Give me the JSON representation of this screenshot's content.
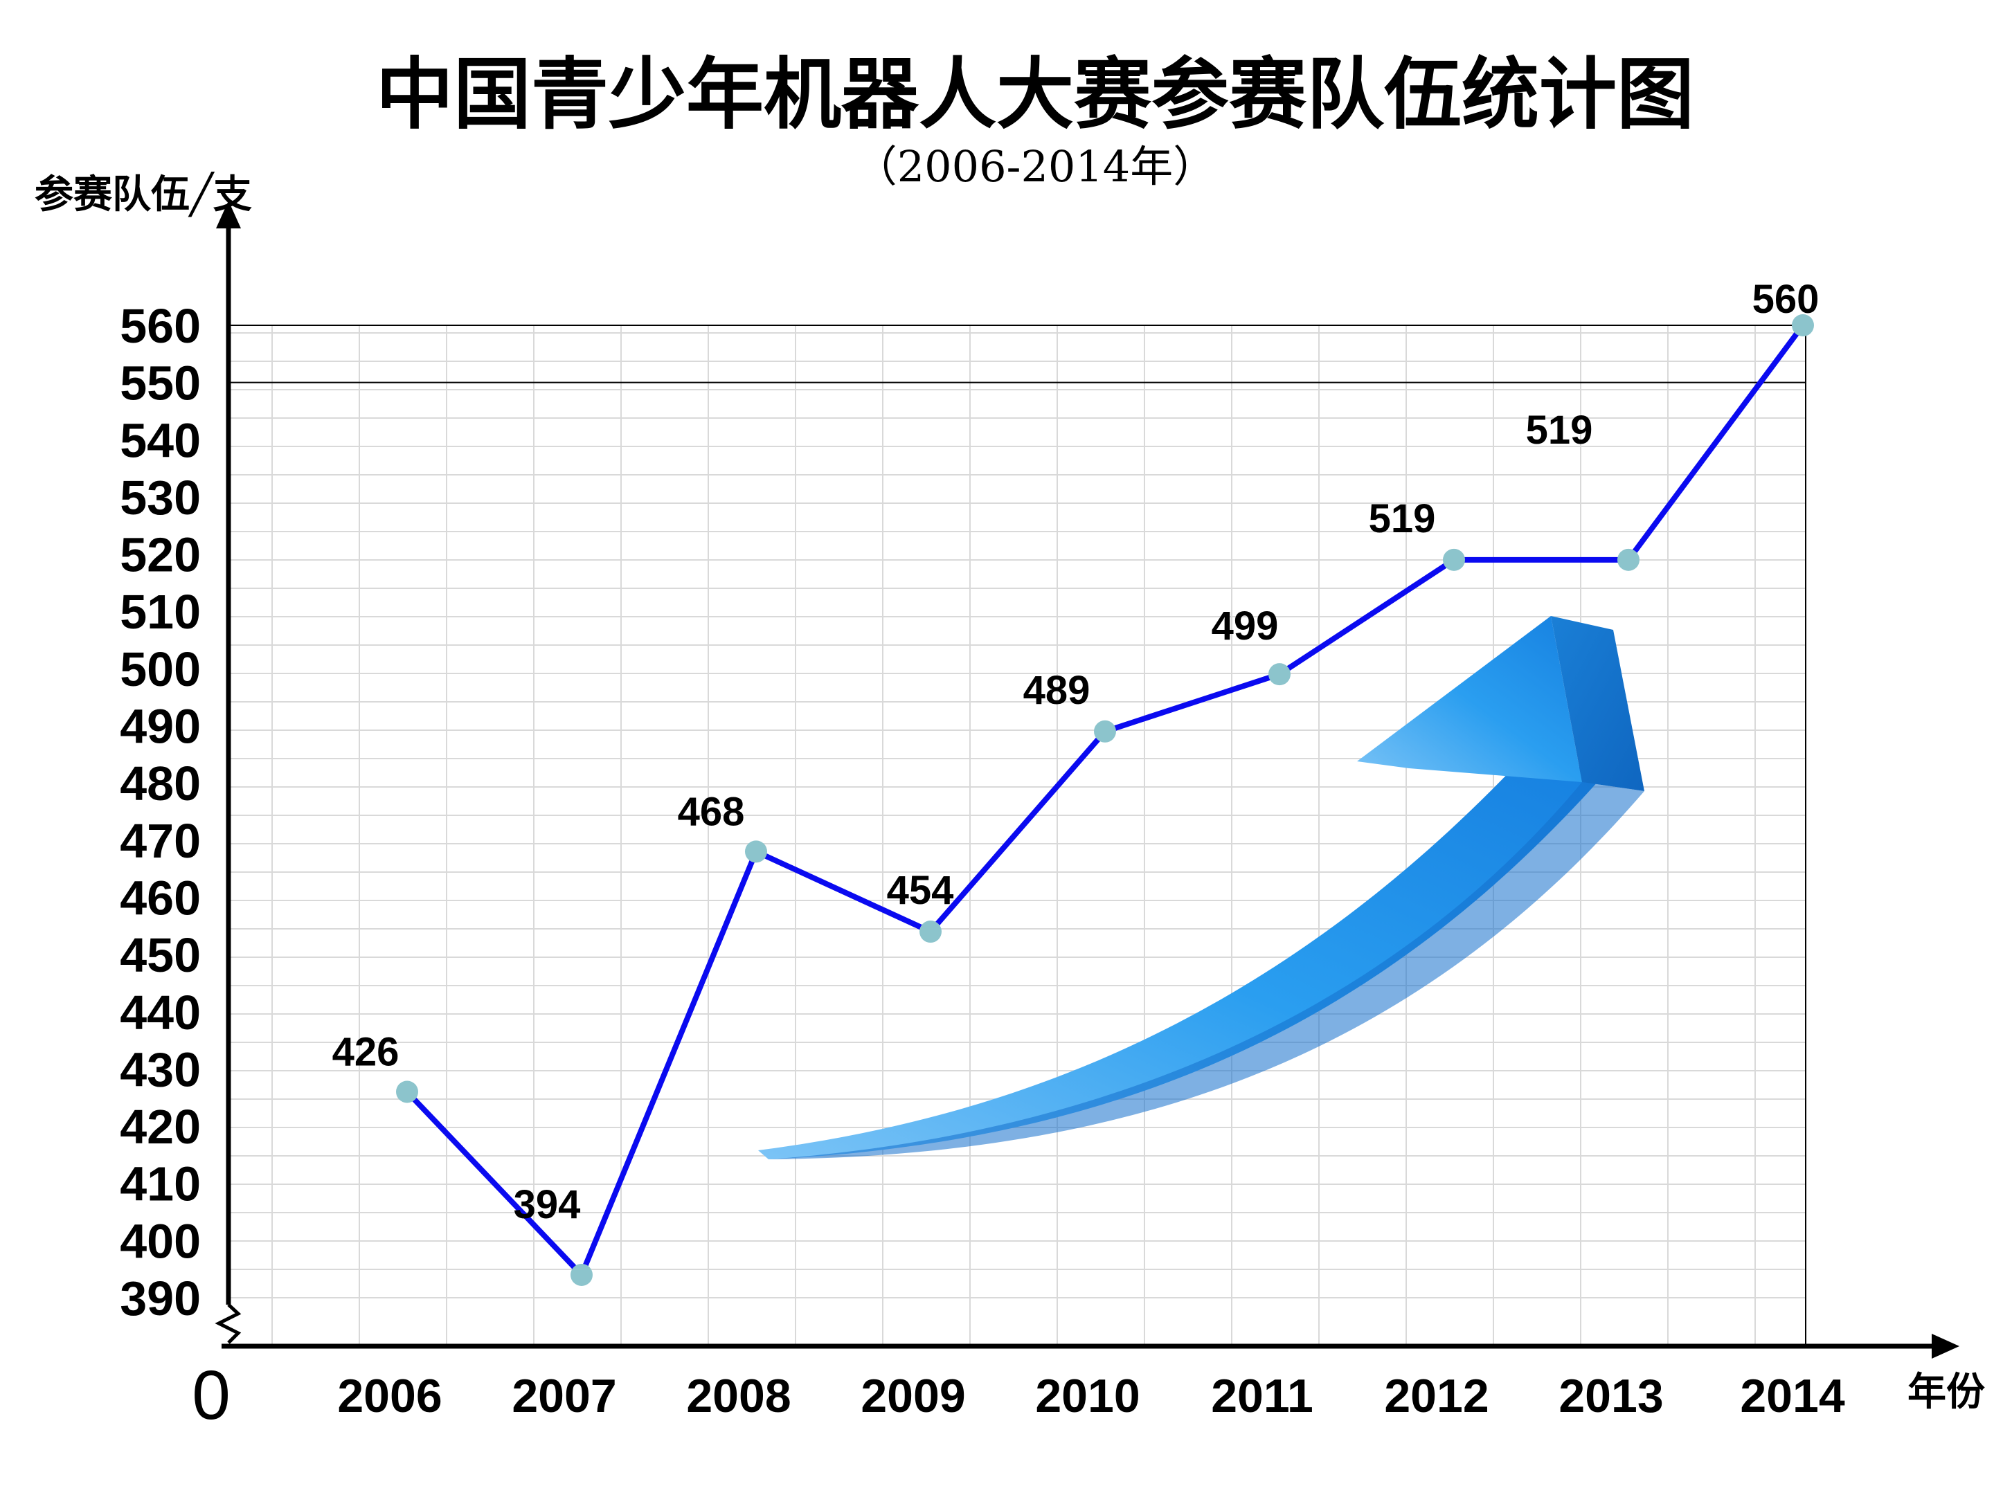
{
  "chart_data": {
    "type": "line",
    "title": "中国青少年机器人大赛参赛队伍统计图",
    "subtitle": "（2006-2014年）",
    "ylabel": "参赛队伍╱支",
    "xlabel": "年份",
    "origin_label": "0",
    "categories": [
      "2006",
      "2007",
      "2008",
      "2009",
      "2010",
      "2011",
      "2012",
      "2013",
      "2014"
    ],
    "series": [
      {
        "name": "参赛队伍",
        "values": [
          426,
          394,
          468,
          454,
          489,
          499,
          519,
          519,
          560
        ],
        "color": "#0a0af0"
      }
    ],
    "data_labels": [
      "426",
      "394",
      "468",
      "454",
      "489",
      "499",
      "519",
      "519",
      "560"
    ],
    "yticks": [
      390,
      400,
      410,
      420,
      430,
      440,
      450,
      460,
      470,
      480,
      490,
      500,
      510,
      520,
      530,
      540,
      550,
      560
    ],
    "ylim": [
      390,
      560
    ],
    "axis_break": true,
    "grid": true,
    "marker_color": "#8cc4cc",
    "arrow_color": "#1e90ee"
  }
}
